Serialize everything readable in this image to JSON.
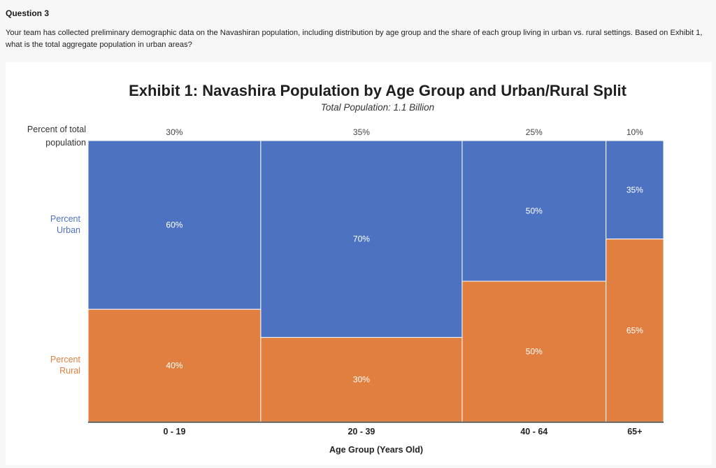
{
  "question": {
    "title": "Question 3",
    "text": "Your team has collected preliminary demographic data on the Navashiran population, including distribution by age group and the share of each group living in urban vs. rural settings. Based on Exhibit 1, what is the total aggregate population in urban areas?"
  },
  "colors": {
    "urban": "#4e72c2",
    "rural": "#e07f3f",
    "urban_text": "#4e72c2",
    "rural_text": "#e07f3f"
  },
  "chart_data": {
    "type": "mekko",
    "title": "Exhibit 1: Navashira Population by Age Group and Urban/Rural Split",
    "subtitle": "Total Population: 1.1 Billion",
    "ylabel_line1": "Percent of total",
    "ylabel_line2": "population",
    "xlabel": "Age Group (Years Old)",
    "urban_label_line1": "Percent",
    "urban_label_line2": "Urban",
    "rural_label_line1": "Percent",
    "rural_label_line2": "Rural",
    "categories": [
      "0 - 19",
      "20 - 39",
      "40 - 64",
      "65+"
    ],
    "widths": [
      30,
      35,
      25,
      10
    ],
    "width_labels": [
      "30%",
      "35%",
      "25%",
      "10%"
    ],
    "series": [
      {
        "name": "Percent Urban",
        "values": [
          60,
          70,
          50,
          35
        ],
        "labels": [
          "60%",
          "70%",
          "50%",
          "35%"
        ]
      },
      {
        "name": "Percent Rural",
        "values": [
          40,
          30,
          50,
          65
        ],
        "labels": [
          "40%",
          "30%",
          "50%",
          "65%"
        ]
      }
    ]
  }
}
